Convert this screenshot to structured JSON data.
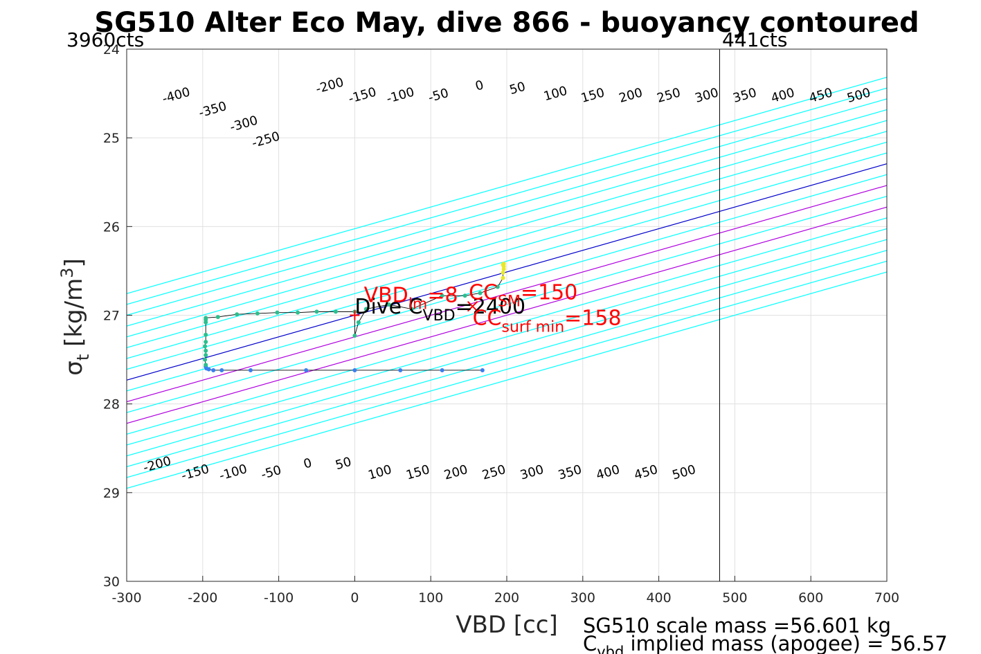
{
  "chart_data": {
    "type": "scatter",
    "title": "SG510 Alter Eco May, dive 866 - buoyancy contoured",
    "xlabel": "VBD [cc]",
    "ylabel_main": "σ",
    "ylabel_sub": "t",
    "ylabel_unit": " [kg/m",
    "ylabel_sup": "3",
    "ylabel_close": "]",
    "xlim": [
      -300,
      700
    ],
    "ylim": [
      24,
      30
    ],
    "y_reversed": true,
    "grid": true,
    "x_ticks": [
      -300,
      -200,
      -100,
      0,
      100,
      200,
      300,
      400,
      500,
      600,
      700
    ],
    "x_tick_labels": [
      "-300",
      "-200",
      "-100",
      "0",
      "100",
      "200",
      "300",
      "400",
      "500",
      "600",
      "700"
    ],
    "y_ticks": [
      24,
      25,
      26,
      27,
      28,
      29,
      30
    ],
    "y_tick_labels": [
      "24",
      "25",
      "26",
      "27",
      "28",
      "29",
      "30"
    ],
    "contours": {
      "levels": [
        -400,
        -350,
        -300,
        -250,
        -200,
        -150,
        -100,
        -50,
        0,
        50,
        100,
        150,
        200,
        250,
        300,
        350,
        400,
        450,
        500
      ],
      "slope_cc_per_sigma": -410,
      "zero_line": {
        "vbd": 0,
        "sigma": 27.0
      },
      "default_color": "#00ffff",
      "special_colors": {
        "0": "#0000cc",
        "100": "#b000e0",
        "200": "#b000e0"
      },
      "top_labels": [
        {
          "text": "-400",
          "vbd": -235,
          "sigma": 24.52
        },
        {
          "text": "-350",
          "vbd": -187,
          "sigma": 24.68
        },
        {
          "text": "-300",
          "vbd": -146,
          "sigma": 24.84
        },
        {
          "text": "-250",
          "vbd": -117,
          "sigma": 25.02
        },
        {
          "text": "-200",
          "vbd": -33,
          "sigma": 24.41
        },
        {
          "text": "-150",
          "vbd": 10,
          "sigma": 24.52
        },
        {
          "text": "-100",
          "vbd": 60,
          "sigma": 24.52
        },
        {
          "text": "-50",
          "vbd": 110,
          "sigma": 24.52
        },
        {
          "text": "0",
          "vbd": 164,
          "sigma": 24.41
        },
        {
          "text": "50",
          "vbd": 214,
          "sigma": 24.44
        },
        {
          "text": "100",
          "vbd": 264,
          "sigma": 24.5
        },
        {
          "text": "150",
          "vbd": 313,
          "sigma": 24.52
        },
        {
          "text": "200",
          "vbd": 363,
          "sigma": 24.52
        },
        {
          "text": "250",
          "vbd": 413,
          "sigma": 24.52
        },
        {
          "text": "300",
          "vbd": 463,
          "sigma": 24.52
        },
        {
          "text": "350",
          "vbd": 513,
          "sigma": 24.52
        },
        {
          "text": "400",
          "vbd": 563,
          "sigma": 24.52
        },
        {
          "text": "450",
          "vbd": 613,
          "sigma": 24.52
        },
        {
          "text": "500",
          "vbd": 663,
          "sigma": 24.52
        }
      ],
      "bottom_labels": [
        {
          "text": "-200",
          "vbd": -260,
          "sigma": 28.68
        },
        {
          "text": "-150",
          "vbd": -210,
          "sigma": 28.77
        },
        {
          "text": "-100",
          "vbd": -160,
          "sigma": 28.77
        },
        {
          "text": "-50",
          "vbd": -110,
          "sigma": 28.77
        },
        {
          "text": "0",
          "vbd": -62,
          "sigma": 28.67
        },
        {
          "text": "50",
          "vbd": -15,
          "sigma": 28.67
        },
        {
          "text": "100",
          "vbd": 33,
          "sigma": 28.77
        },
        {
          "text": "150",
          "vbd": 83,
          "sigma": 28.77
        },
        {
          "text": "200",
          "vbd": 133,
          "sigma": 28.77
        },
        {
          "text": "250",
          "vbd": 183,
          "sigma": 28.77
        },
        {
          "text": "300",
          "vbd": 233,
          "sigma": 28.77
        },
        {
          "text": "350",
          "vbd": 283,
          "sigma": 28.77
        },
        {
          "text": "400",
          "vbd": 333,
          "sigma": 28.77
        },
        {
          "text": "450",
          "vbd": 383,
          "sigma": 28.77
        },
        {
          "text": "500",
          "vbd": 433,
          "sigma": 28.77
        }
      ]
    },
    "vertical_line": {
      "vbd": 480,
      "color": "#000000"
    },
    "series": [
      {
        "color": "#3a7ef0",
        "points": [
          [
            168,
            27.62
          ],
          [
            115,
            27.62
          ],
          [
            60,
            27.62
          ],
          [
            0,
            27.62
          ],
          [
            -64,
            27.62
          ],
          [
            -137,
            27.62
          ],
          [
            -175,
            27.62
          ],
          [
            -186,
            27.62
          ],
          [
            -192,
            27.61
          ],
          [
            -195,
            27.6
          ],
          [
            -196,
            27.58
          ]
        ]
      },
      {
        "color": "#2bbf8e",
        "points": [
          [
            -196,
            27.56
          ],
          [
            -197,
            27.5
          ],
          [
            -196,
            27.45
          ],
          [
            -196,
            27.4
          ],
          [
            -197,
            27.35
          ],
          [
            -196,
            27.3
          ],
          [
            -196,
            27.22
          ],
          [
            -196,
            27.08
          ],
          [
            -196,
            27.05
          ],
          [
            -196,
            27.03
          ],
          [
            -180,
            27.02
          ],
          [
            -155,
            26.99
          ],
          [
            -128,
            26.98
          ],
          [
            -102,
            26.97
          ],
          [
            -75,
            26.97
          ],
          [
            -50,
            26.96
          ],
          [
            -25,
            26.96
          ],
          [
            0,
            26.96
          ],
          [
            0,
            27.23
          ],
          [
            5,
            27.08
          ],
          [
            15,
            26.93
          ],
          [
            45,
            26.88
          ],
          [
            75,
            26.93
          ],
          [
            115,
            26.78
          ],
          [
            145,
            26.78
          ],
          [
            165,
            26.75
          ],
          [
            188,
            26.68
          ]
        ]
      },
      {
        "color": "#e8e82a",
        "points": [
          [
            195,
            26.58
          ],
          [
            195,
            26.52
          ],
          [
            196,
            26.48
          ],
          [
            196,
            26.45
          ],
          [
            195,
            26.43
          ],
          [
            196,
            26.42
          ]
        ]
      }
    ],
    "red_markers": [
      {
        "marker": "plus",
        "vbd": 0,
        "sigma": 27.0
      },
      {
        "marker": "x",
        "vbd": 155,
        "sigma": 26.9
      }
    ],
    "annotations": {
      "dive_c_vbd": {
        "prefix": "Dive C",
        "sub": "VBD",
        "suffix": "=2400",
        "vbd": 0,
        "sigma": 26.98
      },
      "vbd_lm": {
        "prefix": "VBD",
        "sub": "lm",
        "suffix": "=8",
        "vbd": 12,
        "sigma": 26.85
      },
      "cc_sm": {
        "prefix": "CC",
        "sub": "SM",
        "suffix": "=150",
        "vbd": 150,
        "sigma": 26.82
      },
      "cc_surf_min": {
        "prefix": "CC",
        "sub": "surf min",
        "suffix": "=158",
        "vbd": 155,
        "sigma": 27.11
      }
    },
    "left_counts_label": "3960cts",
    "right_counts_label": "441cts",
    "footer_line1": "SG510 scale mass =56.601 kg",
    "footer_line2_prefix": "C",
    "footer_line2_sub": "vbd",
    "footer_line2_suffix": " implied mass (apogee) = 56.57"
  },
  "colors": {
    "axis": "#262626",
    "grid": "#e0e0e0",
    "annotation_red": "#ff0000",
    "series_line": "#000000"
  }
}
